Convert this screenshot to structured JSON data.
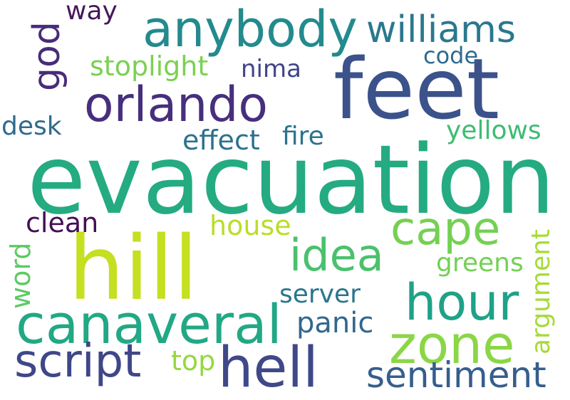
{
  "words": [
    {
      "text": "evacuation",
      "color": "#25ab81"
    },
    {
      "text": "feet",
      "color": "#3b528b"
    },
    {
      "text": "hill",
      "color": "#c5df21"
    },
    {
      "text": "anybody",
      "color": "#238a8d"
    },
    {
      "text": "williams",
      "color": "#2a788e"
    },
    {
      "text": "god",
      "color": "#472c7a"
    },
    {
      "text": "way",
      "color": "#46185d"
    },
    {
      "text": "orlando",
      "color": "#472f7d"
    },
    {
      "text": "stoplight",
      "color": "#7ad151"
    },
    {
      "text": "code",
      "color": "#2f6b8e"
    },
    {
      "text": "nima",
      "color": "#414487"
    },
    {
      "text": "desk",
      "color": "#306a8e"
    },
    {
      "text": "effect",
      "color": "#2c718e"
    },
    {
      "text": "fire",
      "color": "#2c728e"
    },
    {
      "text": "yellows",
      "color": "#3dbc74"
    },
    {
      "text": "cape",
      "color": "#75d054"
    },
    {
      "text": "idea",
      "color": "#4ac16d"
    },
    {
      "text": "clean",
      "color": "#440f53"
    },
    {
      "text": "house",
      "color": "#b8de29"
    },
    {
      "text": "word",
      "color": "#5ec962"
    },
    {
      "text": "argument",
      "color": "#a5db36"
    },
    {
      "text": "greens",
      "color": "#73d056"
    },
    {
      "text": "hour",
      "color": "#1fa287"
    },
    {
      "text": "server",
      "color": "#2a768e"
    },
    {
      "text": "canaveral",
      "color": "#22a884"
    },
    {
      "text": "panic",
      "color": "#31678e"
    },
    {
      "text": "zone",
      "color": "#8bd646"
    },
    {
      "text": "script",
      "color": "#3f4788"
    },
    {
      "text": "hell",
      "color": "#3f4889"
    },
    {
      "text": "top",
      "color": "#95d840"
    },
    {
      "text": "sentiment",
      "color": "#355e8d"
    }
  ]
}
